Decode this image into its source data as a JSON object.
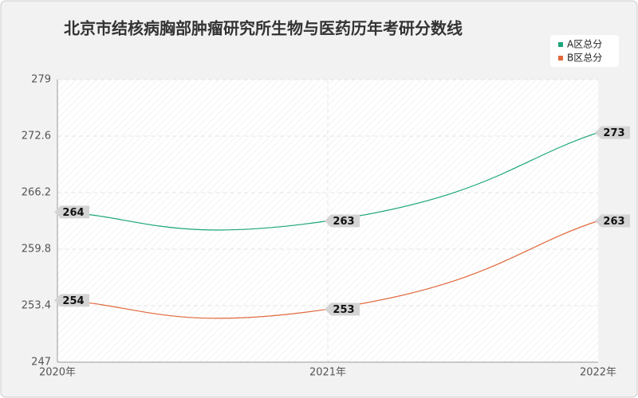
{
  "chart_data": {
    "type": "line",
    "title": "北京市结核病胸部肿瘤研究所生物与医药历年考研分数线",
    "categories": [
      "2020年",
      "2021年",
      "2022年"
    ],
    "series": [
      {
        "name": "A区总分",
        "color": "#1aa57a",
        "values": [
          264,
          263,
          273
        ]
      },
      {
        "name": "B区总分",
        "color": "#e0683a",
        "values": [
          254,
          253,
          263
        ]
      }
    ],
    "ylim": [
      247,
      279
    ],
    "yticks": [
      247,
      253.4,
      259.8,
      266.2,
      272.6,
      279
    ],
    "grid": true,
    "legend": "top-right"
  }
}
